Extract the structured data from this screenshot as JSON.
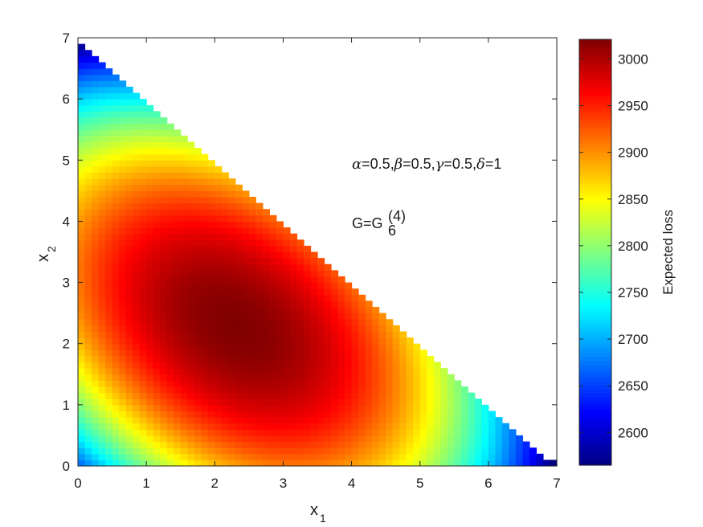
{
  "chart_data": {
    "type": "heatmap",
    "xlabel": {
      "base": "x",
      "sub": "1"
    },
    "ylabel": {
      "base": "x",
      "sub": "2"
    },
    "xlim": [
      0,
      7
    ],
    "ylim": [
      0,
      7
    ],
    "xticks": [
      "0",
      "1",
      "2",
      "3",
      "4",
      "5",
      "6",
      "7"
    ],
    "yticks": [
      "0",
      "1",
      "2",
      "3",
      "4",
      "5",
      "6",
      "7"
    ],
    "domain": "x1 + x2 <= 7",
    "grid": false,
    "colormap": "jet",
    "colorbar": {
      "label": "Expected loss",
      "range": [
        2565,
        3021
      ],
      "ticks": [
        "2600",
        "2650",
        "2700",
        "2750",
        "2800",
        "2850",
        "2900",
        "2950",
        "3000"
      ]
    },
    "peak": {
      "x1": 2.3,
      "x2": 2.3,
      "value": 3021
    },
    "corners": [
      {
        "x1": 0,
        "x2": 0,
        "value": 2660
      },
      {
        "x1": 0,
        "x2": 6.9,
        "value": 2570
      },
      {
        "x1": 6.9,
        "x2": 0,
        "value": 2570
      }
    ],
    "annotations": {
      "params": [
        {
          "sym": "α",
          "val": "=0.5,"
        },
        {
          "sym": "β",
          "val": "=0.5,"
        },
        {
          "sym": "γ",
          "val": "=0.5,"
        },
        {
          "sym": "δ",
          "val": "=1"
        }
      ],
      "g_prefix": "G=G",
      "g_sub": "6",
      "g_sup": "(4)"
    }
  }
}
